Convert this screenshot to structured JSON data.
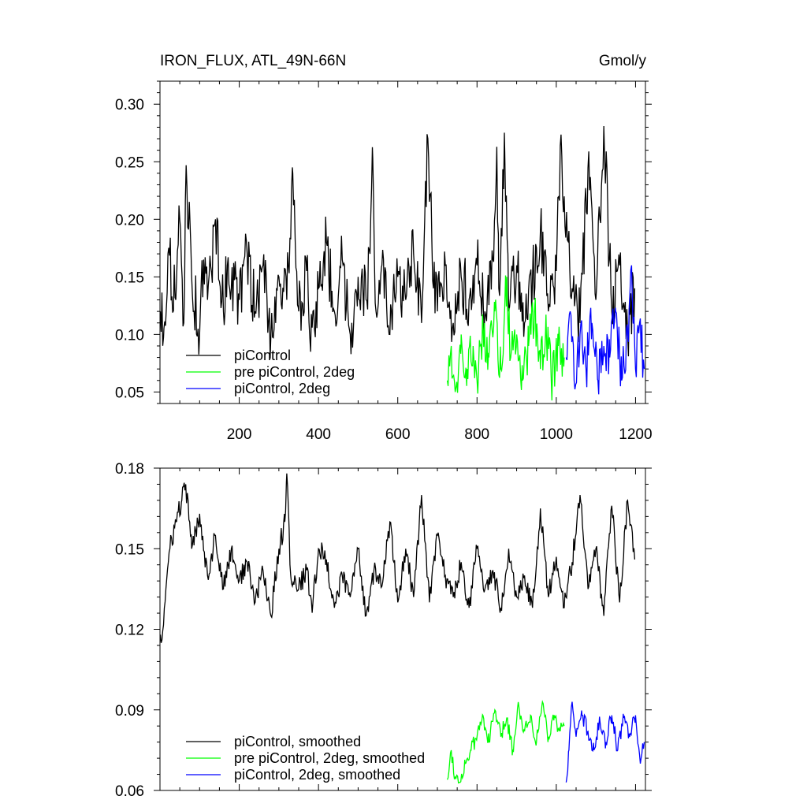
{
  "chart_data": [
    {
      "type": "line",
      "title": "IRON_FLUX, ATL_49N-66N",
      "units": "Gmol/y",
      "xlim": [
        0,
        1225
      ],
      "ylim": [
        0.04,
        0.32
      ],
      "xticks": [
        200,
        400,
        600,
        800,
        1000,
        1200
      ],
      "xtick_labels": [
        "200",
        "400",
        "600",
        "800",
        "1000",
        "1200"
      ],
      "yticks": [
        0.05,
        0.1,
        0.15,
        0.2,
        0.25,
        0.3
      ],
      "ytick_labels": [
        "0.05",
        "0.10",
        "0.15",
        "0.20",
        "0.25",
        "0.30"
      ],
      "grid": false,
      "legend_position": "bottom-left",
      "series": [
        {
          "name": "piControl",
          "color": "#000000",
          "x": [
            1,
            10,
            20,
            40,
            50,
            60,
            66,
            80,
            100,
            110,
            120,
            140,
            160,
            170,
            200,
            220,
            240,
            260,
            280,
            300,
            320,
            335,
            350,
            370,
            380,
            400,
            420,
            440,
            460,
            480,
            500,
            520,
            530,
            537,
            545,
            560,
            580,
            600,
            620,
            640,
            660,
            676,
            690,
            700,
            720,
            740,
            760,
            780,
            800,
            820,
            840,
            850,
            855,
            870,
            880,
            900,
            920,
            940,
            960,
            980,
            1000,
            1010,
            1040,
            1060,
            1080,
            1100,
            1110,
            1120,
            1140,
            1160,
            1180,
            1198
          ],
          "values": [
            0.12,
            0.105,
            0.17,
            0.13,
            0.2,
            0.11,
            0.247,
            0.15,
            0.1,
            0.165,
            0.13,
            0.2,
            0.12,
            0.16,
            0.13,
            0.17,
            0.12,
            0.16,
            0.1,
            0.15,
            0.13,
            0.24,
            0.12,
            0.155,
            0.085,
            0.14,
            0.18,
            0.12,
            0.165,
            0.1,
            0.15,
            0.13,
            0.17,
            0.253,
            0.12,
            0.16,
            0.1,
            0.15,
            0.13,
            0.17,
            0.11,
            0.27,
            0.14,
            0.12,
            0.16,
            0.11,
            0.15,
            0.13,
            0.16,
            0.12,
            0.165,
            0.263,
            0.14,
            0.258,
            0.12,
            0.16,
            0.11,
            0.15,
            0.19,
            0.12,
            0.155,
            0.264,
            0.14,
            0.11,
            0.245,
            0.13,
            0.2,
            0.281,
            0.12,
            0.16,
            0.1,
            0.14
          ]
        },
        {
          "name": "pre piControl, 2deg",
          "color": "#00ff00",
          "x": [
            725,
            735,
            745,
            760,
            775,
            790,
            800,
            815,
            830,
            845,
            860,
            875,
            885,
            900,
            915,
            930,
            945,
            960,
            975,
            990,
            1005,
            1020
          ],
          "values": [
            0.06,
            0.09,
            0.05,
            0.1,
            0.07,
            0.09,
            0.06,
            0.11,
            0.08,
            0.12,
            0.07,
            0.15,
            0.08,
            0.1,
            0.06,
            0.09,
            0.12,
            0.07,
            0.1,
            0.06,
            0.09,
            0.08
          ]
        },
        {
          "name": "piControl, 2deg",
          "color": "#0000ff",
          "x": [
            1025,
            1035,
            1045,
            1060,
            1075,
            1090,
            1105,
            1120,
            1135,
            1150,
            1165,
            1180,
            1190,
            1200,
            1210,
            1222
          ],
          "values": [
            0.08,
            0.12,
            0.06,
            0.1,
            0.07,
            0.11,
            0.06,
            0.09,
            0.08,
            0.12,
            0.06,
            0.1,
            0.16,
            0.07,
            0.11,
            0.07
          ]
        }
      ]
    },
    {
      "type": "line",
      "xlim": [
        0,
        1225
      ],
      "ylim": [
        0.06,
        0.18
      ],
      "yticks": [
        0.06,
        0.09,
        0.12,
        0.15,
        0.18
      ],
      "ytick_labels": [
        "0.06",
        "0.09",
        "0.12",
        "0.15",
        "0.18"
      ],
      "grid": false,
      "legend_position": "bottom-left",
      "series": [
        {
          "name": "piControl, smoothed",
          "color": "#000000",
          "x": [
            1,
            5,
            15,
            25,
            40,
            55,
            65,
            80,
            100,
            120,
            140,
            160,
            180,
            200,
            220,
            240,
            260,
            280,
            300,
            315,
            320,
            330,
            350,
            370,
            385,
            400,
            420,
            440,
            460,
            480,
            500,
            520,
            540,
            560,
            580,
            600,
            620,
            640,
            660,
            680,
            700,
            720,
            740,
            760,
            780,
            800,
            820,
            840,
            860,
            880,
            900,
            920,
            940,
            960,
            980,
            1000,
            1020,
            1040,
            1060,
            1080,
            1100,
            1120,
            1140,
            1160,
            1180,
            1198
          ],
          "values": [
            0.118,
            0.116,
            0.135,
            0.15,
            0.16,
            0.168,
            0.174,
            0.15,
            0.163,
            0.14,
            0.155,
            0.135,
            0.15,
            0.138,
            0.145,
            0.13,
            0.142,
            0.125,
            0.15,
            0.16,
            0.178,
            0.14,
            0.135,
            0.142,
            0.128,
            0.15,
            0.146,
            0.128,
            0.14,
            0.132,
            0.15,
            0.125,
            0.142,
            0.136,
            0.16,
            0.13,
            0.15,
            0.132,
            0.17,
            0.13,
            0.155,
            0.14,
            0.132,
            0.145,
            0.128,
            0.15,
            0.135,
            0.142,
            0.128,
            0.15,
            0.132,
            0.14,
            0.128,
            0.165,
            0.132,
            0.147,
            0.128,
            0.145,
            0.17,
            0.135,
            0.15,
            0.125,
            0.166,
            0.13,
            0.168,
            0.146
          ]
        },
        {
          "name": "pre piControl, 2deg, smoothed",
          "color": "#00ff00",
          "x": [
            725,
            735,
            745,
            755,
            770,
            785,
            800,
            815,
            830,
            845,
            860,
            875,
            890,
            905,
            920,
            935,
            950,
            965,
            980,
            995,
            1010,
            1020
          ],
          "values": [
            0.064,
            0.075,
            0.065,
            0.063,
            0.07,
            0.075,
            0.08,
            0.088,
            0.078,
            0.09,
            0.08,
            0.087,
            0.075,
            0.092,
            0.082,
            0.088,
            0.078,
            0.093,
            0.08,
            0.088,
            0.082,
            0.084
          ]
        },
        {
          "name": "piControl, 2deg, smoothed",
          "color": "#0000ff",
          "x": [
            1025,
            1032,
            1040,
            1050,
            1065,
            1080,
            1095,
            1110,
            1125,
            1140,
            1155,
            1170,
            1185,
            1200,
            1212,
            1222
          ],
          "values": [
            0.063,
            0.075,
            0.093,
            0.08,
            0.088,
            0.082,
            0.075,
            0.086,
            0.078,
            0.088,
            0.075,
            0.087,
            0.08,
            0.088,
            0.07,
            0.078
          ]
        }
      ]
    }
  ]
}
